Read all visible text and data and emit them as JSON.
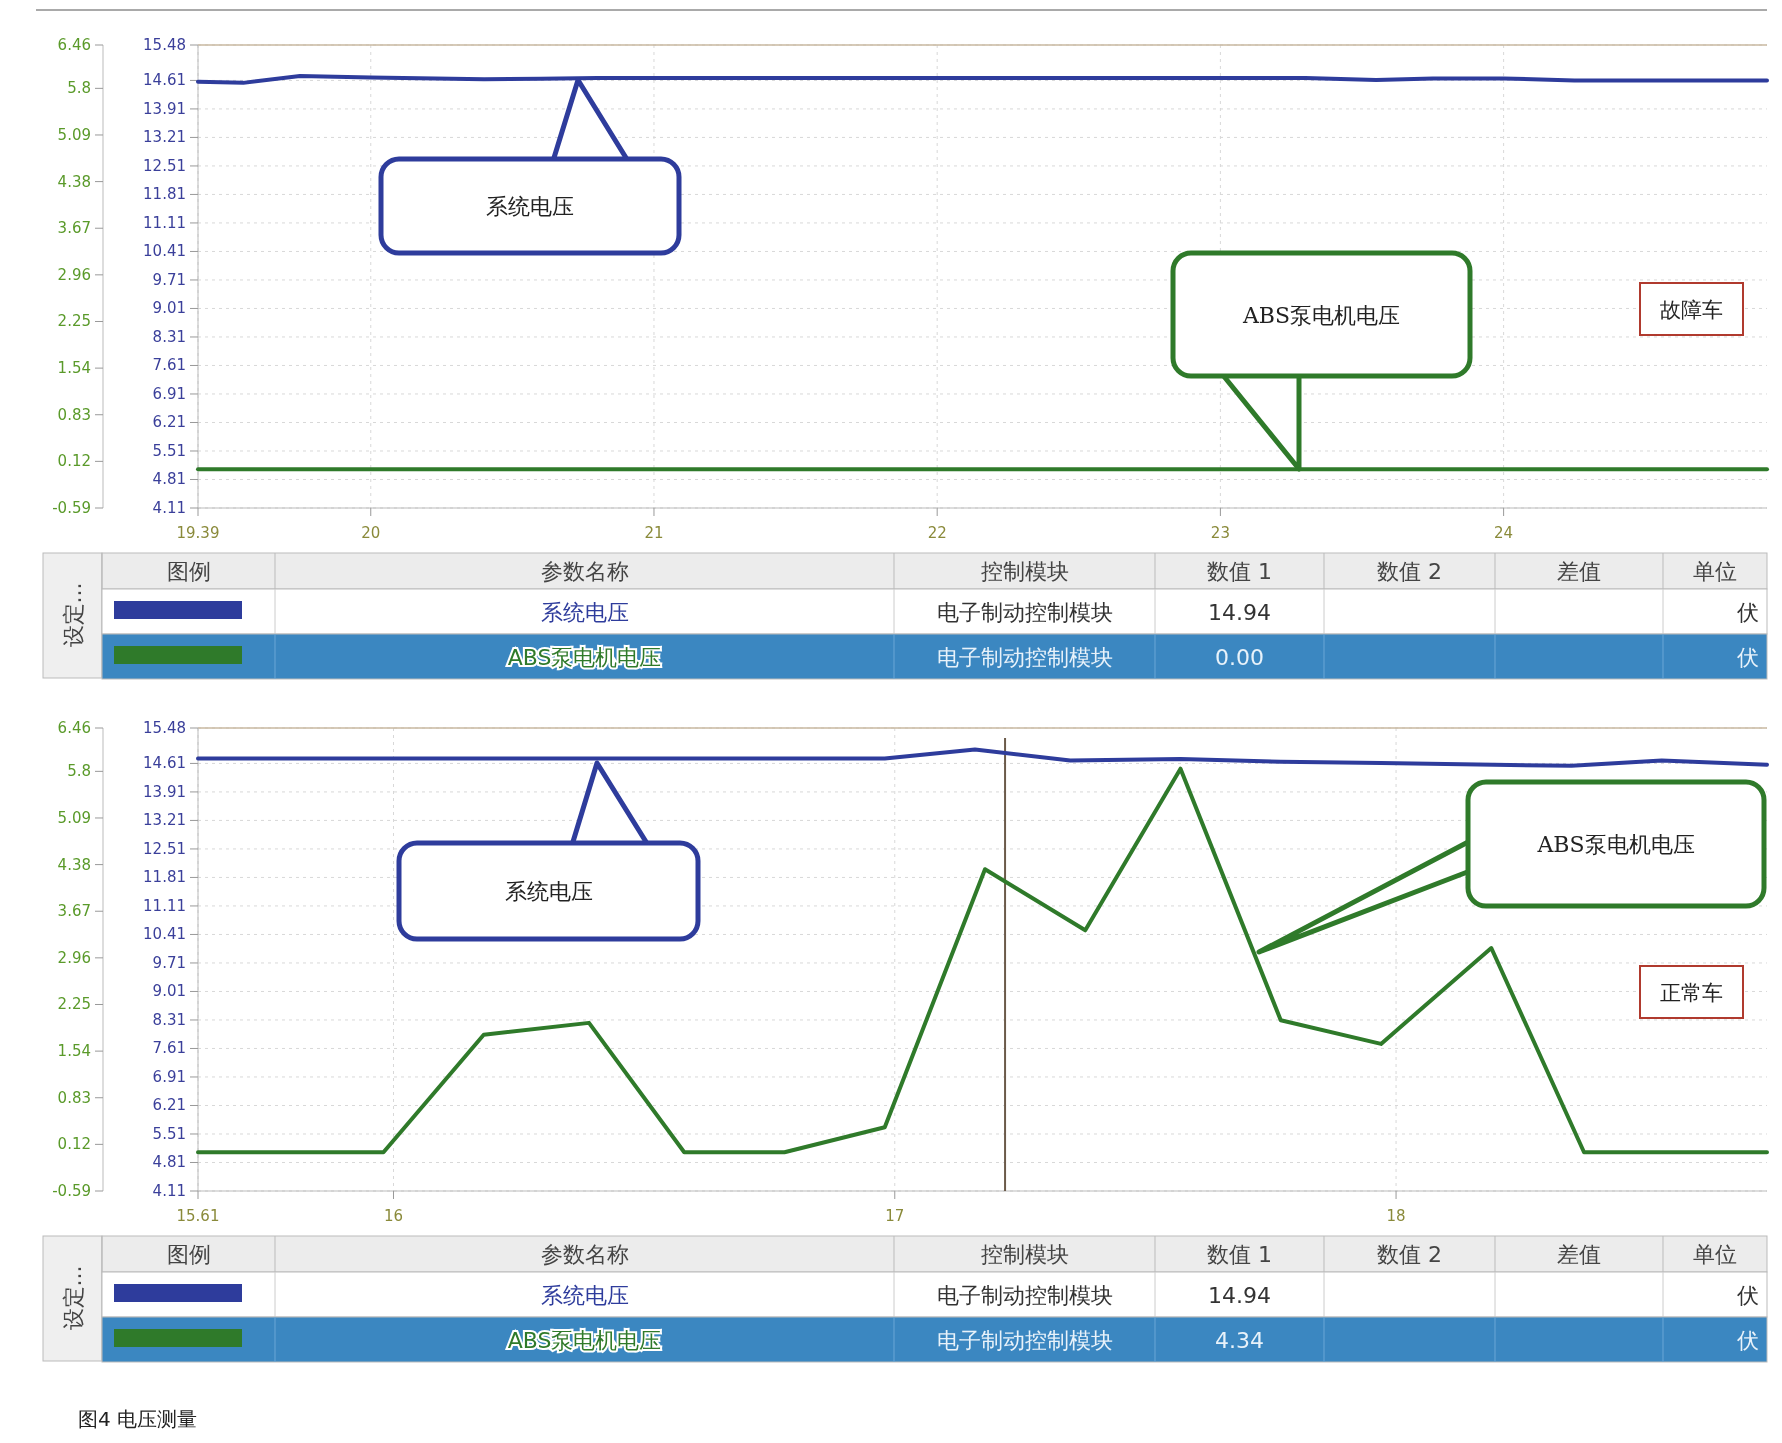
{
  "chart_data": [
    {
      "type": "line",
      "xlim": [
        19.39,
        24.93
      ],
      "xticks": [
        19.39,
        20,
        21,
        22,
        23,
        24
      ],
      "ylim": [
        -0.59,
        6.46
      ],
      "yticks": [
        -0.59,
        0.12,
        0.83,
        1.54,
        2.25,
        2.96,
        3.67,
        4.38,
        5.09,
        5.8,
        6.46
      ],
      "y2lim": [
        4.11,
        15.48
      ],
      "y2ticks": [
        4.11,
        4.81,
        5.51,
        6.21,
        6.91,
        7.61,
        8.31,
        9.01,
        9.71,
        10.41,
        11.11,
        11.81,
        12.51,
        13.21,
        13.91,
        14.61,
        15.48
      ],
      "grid": true,
      "legend": "bottom",
      "series": [
        {
          "name": "系统电压",
          "color": "#2e3c9c",
          "axis": "y2",
          "x": [
            19.39,
            19.55,
            19.75,
            20.0,
            20.4,
            20.6,
            20.8,
            22.0,
            23.3,
            23.55,
            23.75,
            24.0,
            24.25,
            24.93
          ],
          "values": [
            14.58,
            14.55,
            14.72,
            14.68,
            14.64,
            14.65,
            14.67,
            14.67,
            14.67,
            14.62,
            14.66,
            14.66,
            14.61,
            14.61
          ]
        },
        {
          "name": "ABS泵电机电压",
          "color": "#2f7a2a",
          "x": [
            19.39,
            24.93
          ],
          "values": [
            0.0,
            0.0
          ]
        }
      ],
      "annotations": [
        "系统电压",
        "ABS泵电机电压",
        "故障车",
        "设定...",
        "图例",
        "参数名称",
        "控制模块",
        "数值 1",
        "数值 2",
        "差值",
        "单位",
        "电子制动控制模块",
        "14.94",
        "伏",
        "电子制动控制模块",
        "0.00",
        "伏"
      ]
    },
    {
      "type": "line",
      "xlim": [
        15.61,
        18.74
      ],
      "xticks": [
        15.61,
        16,
        17,
        18
      ],
      "ylim": [
        -0.59,
        6.46
      ],
      "yticks": [
        -0.59,
        0.12,
        0.83,
        1.54,
        2.25,
        2.96,
        3.67,
        4.38,
        5.09,
        5.8,
        6.46
      ],
      "y2lim": [
        4.11,
        15.48
      ],
      "y2ticks": [
        4.11,
        4.81,
        5.51,
        6.21,
        6.91,
        7.61,
        8.31,
        9.01,
        9.71,
        10.41,
        11.11,
        11.81,
        12.51,
        13.21,
        13.91,
        14.61,
        15.48
      ],
      "grid": true,
      "legend": "bottom",
      "series": [
        {
          "name": "系统电压",
          "color": "#2e3c9c",
          "axis": "y2",
          "x": [
            15.61,
            16.8,
            16.98,
            17.16,
            17.35,
            17.57,
            17.77,
            17.97,
            18.35,
            18.53,
            18.74
          ],
          "values": [
            14.73,
            14.73,
            14.73,
            14.95,
            14.68,
            14.72,
            14.65,
            14.62,
            14.55,
            14.68,
            14.58
          ]
        },
        {
          "name": "ABS泵电机电压",
          "color": "#2f7a2a",
          "x": [
            15.61,
            15.98,
            16.18,
            16.39,
            16.58,
            16.78,
            16.98,
            17.18,
            17.38,
            17.57,
            17.77,
            17.97,
            18.19,
            18.375,
            18.74
          ],
          "values": [
            0.0,
            0.0,
            1.79,
            1.97,
            0.0,
            0.0,
            0.38,
            4.31,
            3.38,
            5.84,
            2.01,
            1.65,
            3.11,
            0.0,
            0.0
          ]
        }
      ],
      "ref_lines": [
        {
          "axis": "x",
          "value": 17.22,
          "color": "#6b5a4a"
        }
      ],
      "annotations": [
        "系统电压",
        "ABS泵电机电压",
        "正常车",
        "设定...",
        "图例",
        "参数名称",
        "控制模块",
        "数值 1",
        "数值 2",
        "差值",
        "单位",
        "电子制动控制模块",
        "14.94",
        "伏",
        "电子制动控制模块",
        "4.34",
        "伏",
        "图4 电压测量"
      ]
    }
  ]
}
